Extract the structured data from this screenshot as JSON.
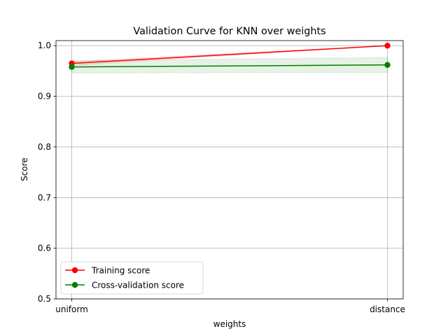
{
  "chart_data": {
    "type": "line",
    "title": "Validation Curve for KNN over weights",
    "xlabel": "weights",
    "ylabel": "Score",
    "categories": [
      "uniform",
      "distance"
    ],
    "ylim": [
      0.5,
      1.01
    ],
    "yticks": [
      "0.5",
      "0.6",
      "0.7",
      "0.8",
      "0.9",
      "1.0"
    ],
    "grid": true,
    "legend_position": "lower-left",
    "series": [
      {
        "name": "Training score",
        "color": "#ff0000",
        "band_color": "#ff0000",
        "values": [
          0.965,
          1.0
        ],
        "band_lower": [
          0.961,
          1.0
        ],
        "band_upper": [
          0.969,
          1.0
        ]
      },
      {
        "name": "Cross-validation score",
        "color": "#008000",
        "band_color": "#008000",
        "values": [
          0.958,
          0.962
        ],
        "band_lower": [
          0.946,
          0.947
        ],
        "band_upper": [
          0.97,
          0.977
        ]
      }
    ]
  }
}
